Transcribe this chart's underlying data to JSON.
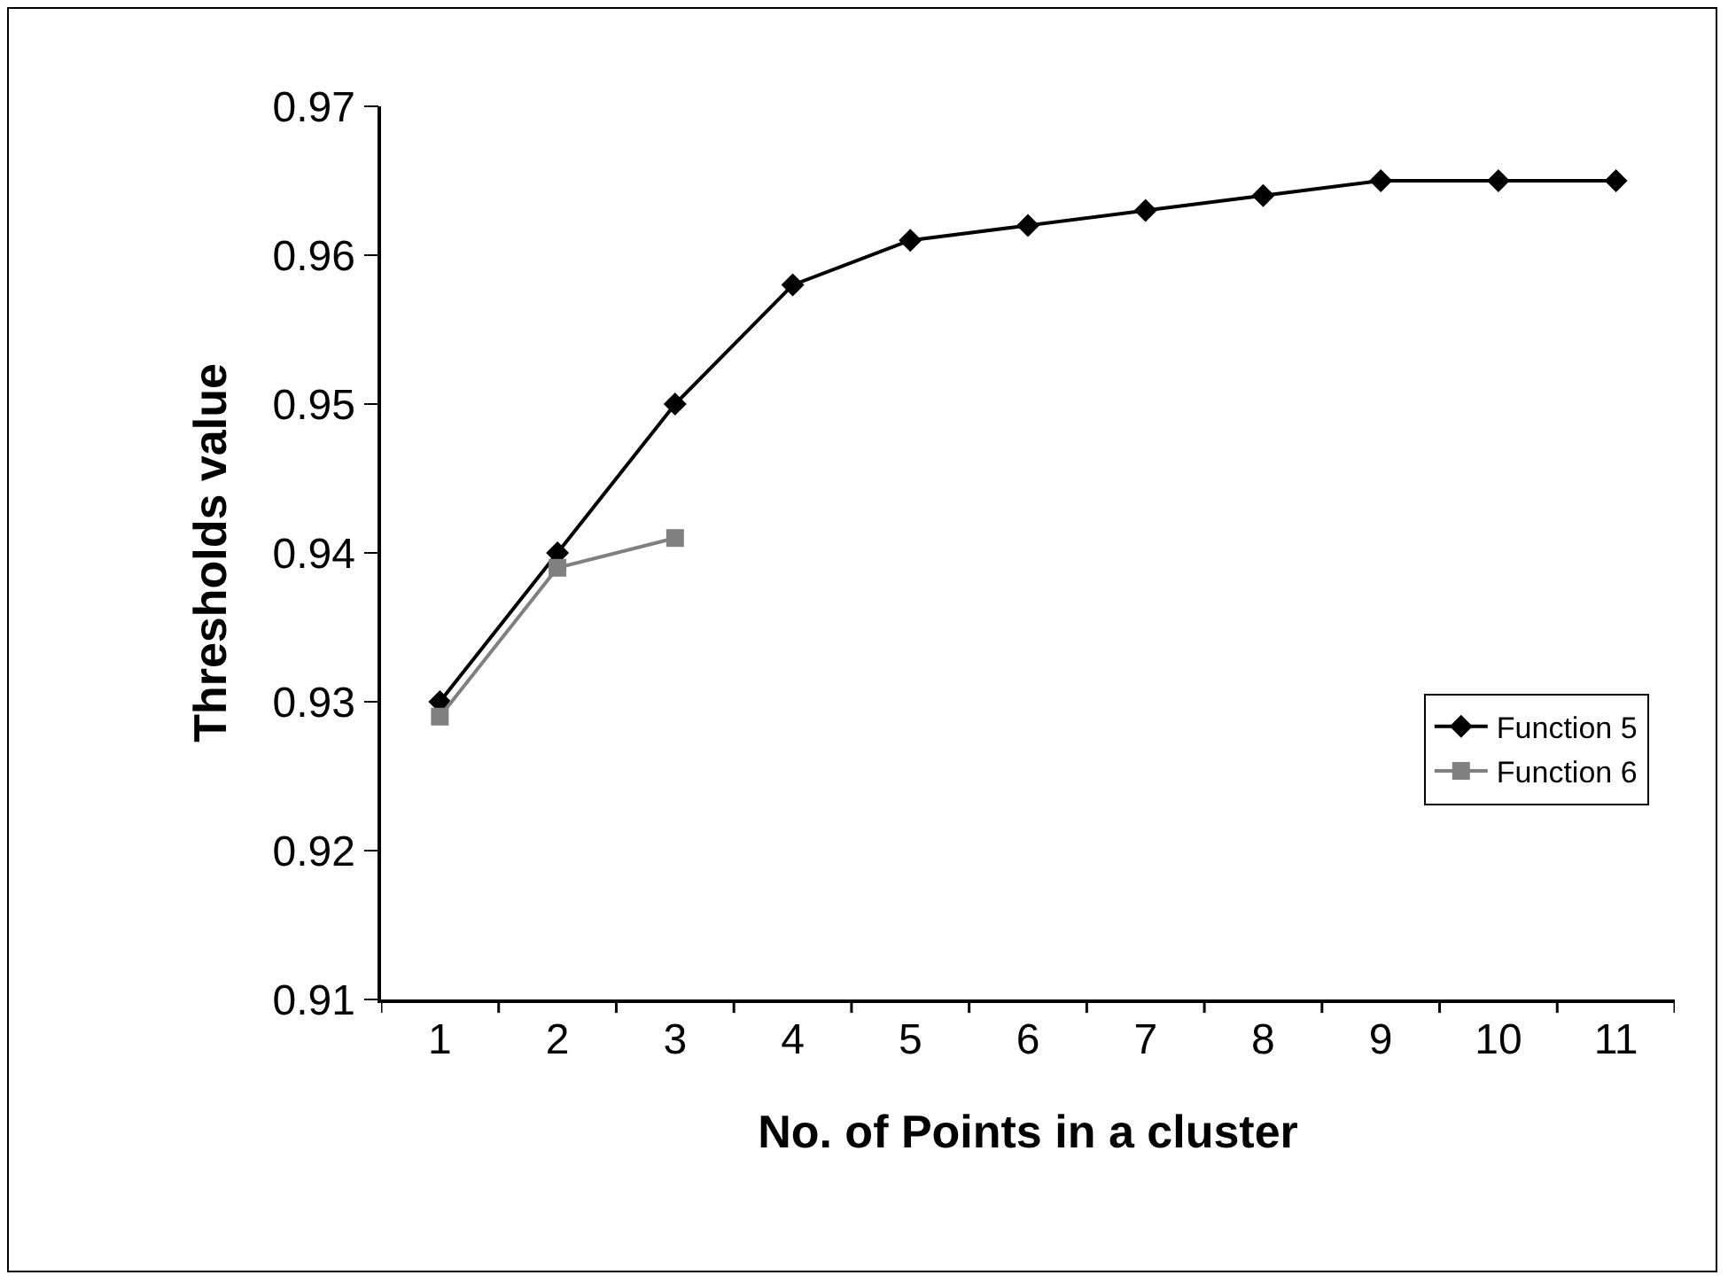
{
  "chart_data": {
    "type": "line",
    "xlabel": "No. of Points in a cluster",
    "ylabel": "Thresholds value",
    "categories": [
      "1",
      "2",
      "3",
      "4",
      "5",
      "6",
      "7",
      "8",
      "9",
      "10",
      "11"
    ],
    "ylim": [
      0.91,
      0.97
    ],
    "yticks": [
      0.91,
      0.92,
      0.93,
      0.94,
      0.95,
      0.96,
      0.97
    ],
    "grid": false,
    "legend": "right",
    "line_style": "solid",
    "series": [
      {
        "name": "Function 5",
        "color": "#000000",
        "marker": "diamond",
        "values": [
          0.93,
          0.94,
          0.95,
          0.958,
          0.961,
          0.962,
          0.963,
          0.964,
          0.965,
          0.965,
          0.965
        ]
      },
      {
        "name": "Function 6",
        "color": "#808080",
        "marker": "square",
        "values": [
          0.929,
          0.939,
          0.941,
          null,
          null,
          null,
          null,
          null,
          null,
          null,
          null
        ]
      }
    ]
  }
}
